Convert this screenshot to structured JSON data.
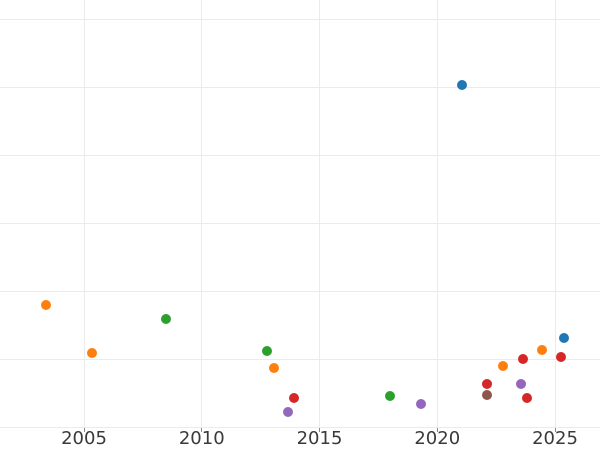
{
  "colors": {
    "background": "#ffffff",
    "gridline": "#ebebeb",
    "tick": "#8a8a8a",
    "tick_label": "#3a3a3a"
  },
  "chart_data": {
    "type": "scatter",
    "title": "",
    "xlabel": "",
    "ylabel": "",
    "legend_position": "none",
    "grid": true,
    "marker": "circle",
    "x_tick_labels": [
      "2005",
      "2010",
      "2015",
      "2020",
      "2025"
    ],
    "x_tick_years": [
      2005,
      2010,
      2015,
      2020,
      2025
    ],
    "xlim": [
      2001.4,
      2026.9
    ],
    "y_tick_labels_visible": false,
    "y_value_basis": "estimated in gridline units: bottom visible gridline = 0, one gridline spacing = 1",
    "y_gridline_values": [
      0,
      1,
      2,
      3,
      4,
      5,
      6
    ],
    "ylim": [
      -0.33,
      6.0
    ],
    "series": [
      {
        "name": "blue",
        "color": "#1f77b4",
        "points": [
          [
            2021.05,
            5.03
          ],
          [
            2025.4,
            1.32
          ]
        ]
      },
      {
        "name": "orange",
        "color": "#ff7f0e",
        "points": [
          [
            2003.4,
            1.8
          ],
          [
            2005.35,
            1.1
          ],
          [
            2013.05,
            0.88
          ],
          [
            2022.8,
            0.9
          ],
          [
            2024.45,
            1.14
          ]
        ]
      },
      {
        "name": "green",
        "color": "#2ca02c",
        "points": [
          [
            2008.5,
            1.59
          ],
          [
            2012.75,
            1.13
          ],
          [
            2018.0,
            0.46
          ]
        ]
      },
      {
        "name": "red",
        "color": "#d62728",
        "points": [
          [
            2013.9,
            0.43
          ],
          [
            2022.1,
            0.64
          ],
          [
            2023.65,
            1.01
          ],
          [
            2023.8,
            0.43
          ],
          [
            2025.25,
            1.04
          ]
        ]
      },
      {
        "name": "purple",
        "color": "#9467bd",
        "points": [
          [
            2013.65,
            0.23
          ],
          [
            2019.3,
            0.35
          ],
          [
            2023.55,
            0.64
          ]
        ]
      },
      {
        "name": "brown",
        "color": "#8c564b",
        "points": [
          [
            2022.1,
            0.48
          ]
        ]
      }
    ]
  }
}
